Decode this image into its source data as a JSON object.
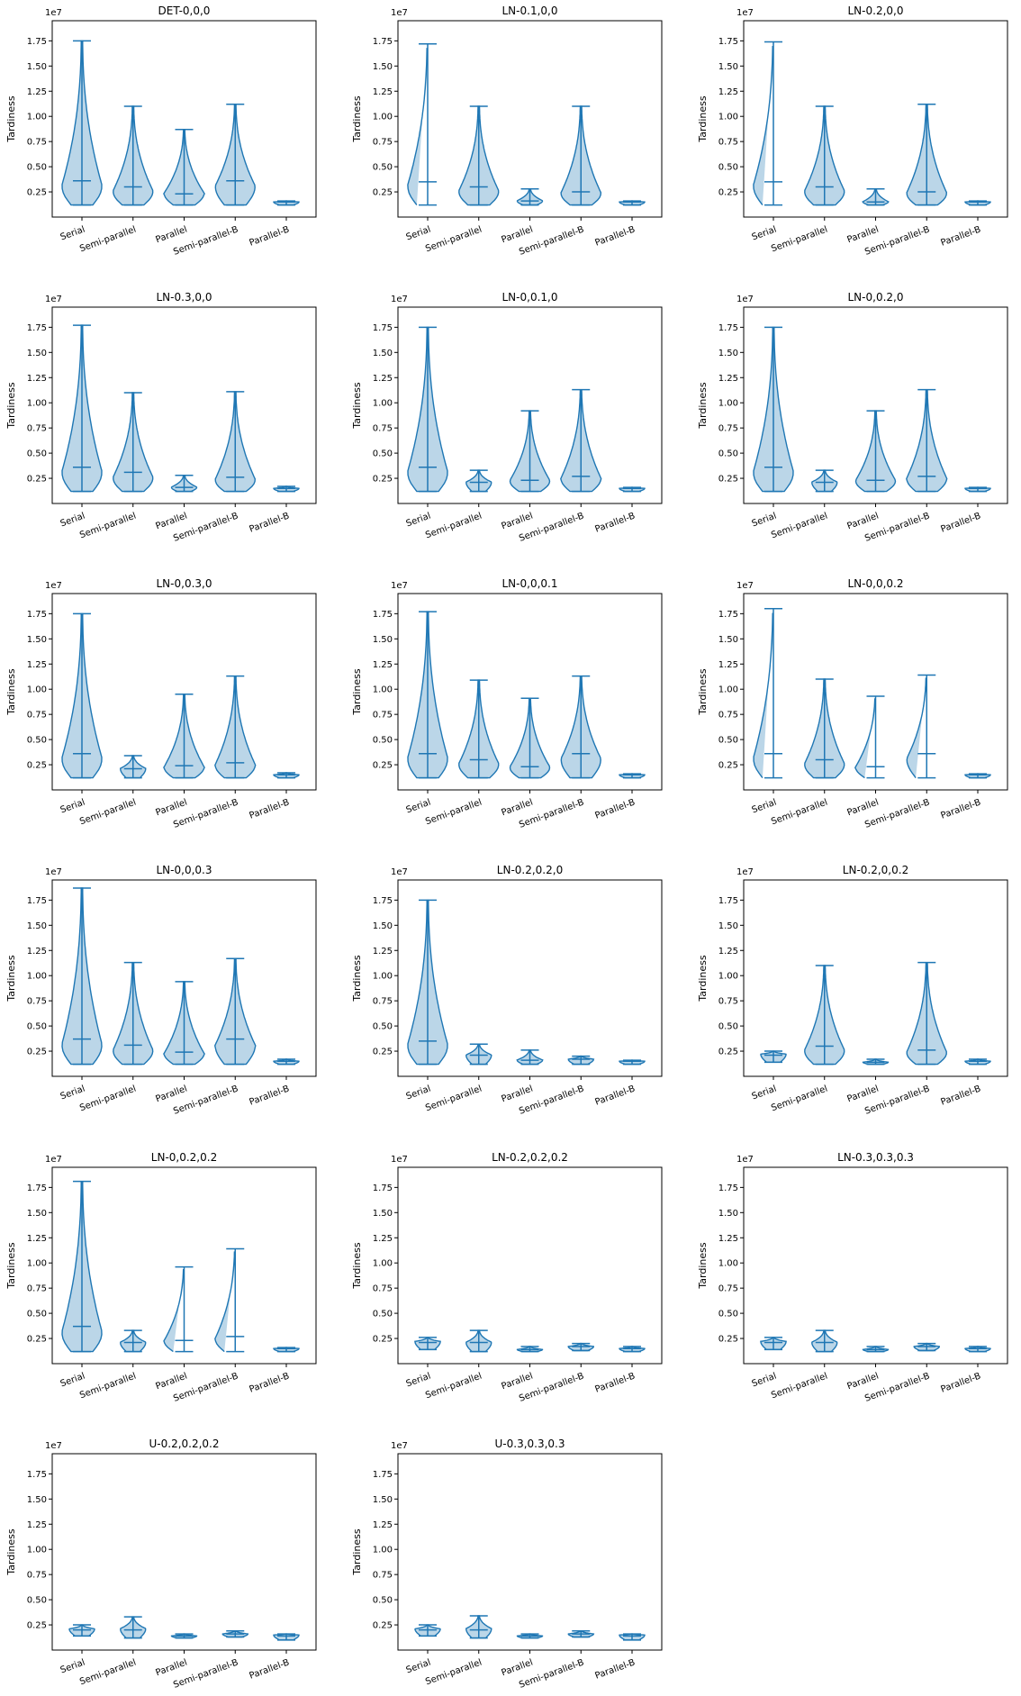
{
  "figure": {
    "ylabel": "Tardiness",
    "offset_label": "1e7",
    "yticks": [
      "0.25",
      "0.50",
      "0.75",
      "1.00",
      "1.25",
      "1.50",
      "1.75"
    ],
    "categories": [
      "Serial",
      "Semi-parallel",
      "Parallel",
      "Semi-parallel-B",
      "Parallel-B"
    ],
    "colors": {
      "fill": "#1f77b4",
      "line": "#1f77b4"
    }
  },
  "chart_data": [
    {
      "type": "violin",
      "title": "DET-0,0,0",
      "ylabel": "Tardiness",
      "ylim": [
        0,
        1.95
      ],
      "y_scale": "1e7",
      "categories": [
        "Serial",
        "Semi-parallel",
        "Parallel",
        "Semi-parallel-B",
        "Parallel-B"
      ],
      "series": [
        {
          "min": 0.12,
          "median": 0.36,
          "max": 1.75,
          "peak": 0.3
        },
        {
          "min": 0.12,
          "median": 0.3,
          "max": 1.1,
          "peak": 0.25
        },
        {
          "min": 0.12,
          "median": 0.23,
          "max": 0.87,
          "peak": 0.23
        },
        {
          "min": 0.12,
          "median": 0.36,
          "max": 1.12,
          "peak": 0.3
        },
        {
          "min": 0.12,
          "median": 0.15,
          "max": 0.16,
          "peak": 0.15
        }
      ]
    },
    {
      "type": "violin",
      "title": "LN-0.1,0,0",
      "ylabel": "Tardiness",
      "ylim": [
        0,
        1.95
      ],
      "y_scale": "1e7",
      "categories": [
        "Serial",
        "Semi-parallel",
        "Parallel",
        "Semi-parallel-B",
        "Parallel-B"
      ],
      "series": [
        {
          "min": 0.12,
          "median": 0.35,
          "max": 1.72,
          "peak": 0.3
        },
        {
          "min": 0.12,
          "median": 0.3,
          "max": 1.1,
          "peak": 0.25
        },
        {
          "min": 0.12,
          "median": 0.16,
          "max": 0.28,
          "peak": 0.16
        },
        {
          "min": 0.12,
          "median": 0.25,
          "max": 1.1,
          "peak": 0.23
        },
        {
          "min": 0.12,
          "median": 0.15,
          "max": 0.16,
          "peak": 0.15
        }
      ]
    },
    {
      "type": "violin",
      "title": "LN-0.2,0,0",
      "ylabel": "Tardiness",
      "ylim": [
        0,
        1.95
      ],
      "y_scale": "1e7",
      "categories": [
        "Serial",
        "Semi-parallel",
        "Parallel",
        "Semi-parallel-B",
        "Parallel-B"
      ],
      "series": [
        {
          "min": 0.12,
          "median": 0.35,
          "max": 1.74,
          "peak": 0.3
        },
        {
          "min": 0.12,
          "median": 0.3,
          "max": 1.1,
          "peak": 0.25
        },
        {
          "min": 0.12,
          "median": 0.15,
          "max": 0.28,
          "peak": 0.15
        },
        {
          "min": 0.12,
          "median": 0.25,
          "max": 1.12,
          "peak": 0.23
        },
        {
          "min": 0.12,
          "median": 0.15,
          "max": 0.16,
          "peak": 0.15
        }
      ]
    },
    {
      "type": "violin",
      "title": "LN-0.3,0,0",
      "ylabel": "Tardiness",
      "ylim": [
        0,
        1.95
      ],
      "y_scale": "1e7",
      "categories": [
        "Serial",
        "Semi-parallel",
        "Parallel",
        "Semi-parallel-B",
        "Parallel-B"
      ],
      "series": [
        {
          "min": 0.12,
          "median": 0.36,
          "max": 1.77,
          "peak": 0.3
        },
        {
          "min": 0.12,
          "median": 0.31,
          "max": 1.1,
          "peak": 0.25
        },
        {
          "min": 0.12,
          "median": 0.16,
          "max": 0.28,
          "peak": 0.16
        },
        {
          "min": 0.12,
          "median": 0.26,
          "max": 1.11,
          "peak": 0.23
        },
        {
          "min": 0.12,
          "median": 0.15,
          "max": 0.17,
          "peak": 0.15
        }
      ]
    },
    {
      "type": "violin",
      "title": "LN-0,0.1,0",
      "ylabel": "Tardiness",
      "ylim": [
        0,
        1.95
      ],
      "y_scale": "1e7",
      "categories": [
        "Serial",
        "Semi-parallel",
        "Parallel",
        "Semi-parallel-B",
        "Parallel-B"
      ],
      "series": [
        {
          "min": 0.12,
          "median": 0.36,
          "max": 1.75,
          "peak": 0.3
        },
        {
          "min": 0.12,
          "median": 0.21,
          "max": 0.33,
          "peak": 0.21
        },
        {
          "min": 0.12,
          "median": 0.23,
          "max": 0.92,
          "peak": 0.22
        },
        {
          "min": 0.12,
          "median": 0.27,
          "max": 1.13,
          "peak": 0.24
        },
        {
          "min": 0.12,
          "median": 0.15,
          "max": 0.16,
          "peak": 0.15
        }
      ]
    },
    {
      "type": "violin",
      "title": "LN-0,0.2,0",
      "ylabel": "Tardiness",
      "ylim": [
        0,
        1.95
      ],
      "y_scale": "1e7",
      "categories": [
        "Serial",
        "Semi-parallel",
        "Parallel",
        "Semi-parallel-B",
        "Parallel-B"
      ],
      "series": [
        {
          "min": 0.12,
          "median": 0.36,
          "max": 1.75,
          "peak": 0.3
        },
        {
          "min": 0.12,
          "median": 0.21,
          "max": 0.33,
          "peak": 0.21
        },
        {
          "min": 0.12,
          "median": 0.23,
          "max": 0.92,
          "peak": 0.22
        },
        {
          "min": 0.12,
          "median": 0.27,
          "max": 1.13,
          "peak": 0.24
        },
        {
          "min": 0.12,
          "median": 0.15,
          "max": 0.16,
          "peak": 0.15
        }
      ]
    },
    {
      "type": "violin",
      "title": "LN-0,0.3,0",
      "ylabel": "Tardiness",
      "ylim": [
        0,
        1.95
      ],
      "y_scale": "1e7",
      "categories": [
        "Serial",
        "Semi-parallel",
        "Parallel",
        "Semi-parallel-B",
        "Parallel-B"
      ],
      "series": [
        {
          "min": 0.12,
          "median": 0.36,
          "max": 1.75,
          "peak": 0.3
        },
        {
          "min": 0.12,
          "median": 0.21,
          "max": 0.34,
          "peak": 0.21
        },
        {
          "min": 0.12,
          "median": 0.24,
          "max": 0.95,
          "peak": 0.22
        },
        {
          "min": 0.12,
          "median": 0.27,
          "max": 1.13,
          "peak": 0.24
        },
        {
          "min": 0.12,
          "median": 0.15,
          "max": 0.17,
          "peak": 0.15
        }
      ]
    },
    {
      "type": "violin",
      "title": "LN-0,0,0.1",
      "ylabel": "Tardiness",
      "ylim": [
        0,
        1.95
      ],
      "y_scale": "1e7",
      "categories": [
        "Serial",
        "Semi-parallel",
        "Parallel",
        "Semi-parallel-B",
        "Parallel-B"
      ],
      "series": [
        {
          "min": 0.12,
          "median": 0.36,
          "max": 1.77,
          "peak": 0.3
        },
        {
          "min": 0.12,
          "median": 0.3,
          "max": 1.09,
          "peak": 0.25
        },
        {
          "min": 0.12,
          "median": 0.23,
          "max": 0.91,
          "peak": 0.22
        },
        {
          "min": 0.12,
          "median": 0.36,
          "max": 1.13,
          "peak": 0.3
        },
        {
          "min": 0.12,
          "median": 0.15,
          "max": 0.16,
          "peak": 0.15
        }
      ]
    },
    {
      "type": "violin",
      "title": "LN-0,0,0.2",
      "ylabel": "Tardiness",
      "ylim": [
        0,
        1.95
      ],
      "y_scale": "1e7",
      "categories": [
        "Serial",
        "Semi-parallel",
        "Parallel",
        "Semi-parallel-B",
        "Parallel-B"
      ],
      "series": [
        {
          "min": 0.12,
          "median": 0.36,
          "max": 1.8,
          "peak": 0.3
        },
        {
          "min": 0.12,
          "median": 0.3,
          "max": 1.1,
          "peak": 0.25
        },
        {
          "min": 0.12,
          "median": 0.23,
          "max": 0.93,
          "peak": 0.22
        },
        {
          "min": 0.12,
          "median": 0.36,
          "max": 1.14,
          "peak": 0.3
        },
        {
          "min": 0.12,
          "median": 0.15,
          "max": 0.16,
          "peak": 0.15
        }
      ]
    },
    {
      "type": "violin",
      "title": "LN-0,0,0.3",
      "ylabel": "Tardiness",
      "ylim": [
        0,
        1.95
      ],
      "y_scale": "1e7",
      "categories": [
        "Serial",
        "Semi-parallel",
        "Parallel",
        "Semi-parallel-B",
        "Parallel-B"
      ],
      "series": [
        {
          "min": 0.12,
          "median": 0.37,
          "max": 1.87,
          "peak": 0.3
        },
        {
          "min": 0.12,
          "median": 0.31,
          "max": 1.13,
          "peak": 0.25
        },
        {
          "min": 0.12,
          "median": 0.24,
          "max": 0.94,
          "peak": 0.22
        },
        {
          "min": 0.12,
          "median": 0.37,
          "max": 1.17,
          "peak": 0.3
        },
        {
          "min": 0.12,
          "median": 0.15,
          "max": 0.17,
          "peak": 0.15
        }
      ]
    },
    {
      "type": "violin",
      "title": "LN-0.2,0.2,0",
      "ylabel": "Tardiness",
      "ylim": [
        0,
        1.95
      ],
      "y_scale": "1e7",
      "categories": [
        "Serial",
        "Semi-parallel",
        "Parallel",
        "Semi-parallel-B",
        "Parallel-B"
      ],
      "series": [
        {
          "min": 0.12,
          "median": 0.35,
          "max": 1.75,
          "peak": 0.3
        },
        {
          "min": 0.12,
          "median": 0.21,
          "max": 0.32,
          "peak": 0.21
        },
        {
          "min": 0.12,
          "median": 0.16,
          "max": 0.26,
          "peak": 0.16
        },
        {
          "min": 0.12,
          "median": 0.17,
          "max": 0.2,
          "peak": 0.17
        },
        {
          "min": 0.12,
          "median": 0.15,
          "max": 0.16,
          "peak": 0.15
        }
      ]
    },
    {
      "type": "violin",
      "title": "LN-0.2,0,0.2",
      "ylabel": "Tardiness",
      "ylim": [
        0,
        1.95
      ],
      "y_scale": "1e7",
      "categories": [
        "Serial",
        "Semi-parallel",
        "Parallel",
        "Semi-parallel-B",
        "Parallel-B"
      ],
      "series": [
        {
          "min": 0.14,
          "median": 0.21,
          "max": 0.25,
          "peak": 0.22
        },
        {
          "min": 0.12,
          "median": 0.3,
          "max": 1.1,
          "peak": 0.25
        },
        {
          "min": 0.12,
          "median": 0.14,
          "max": 0.17,
          "peak": 0.14
        },
        {
          "min": 0.12,
          "median": 0.26,
          "max": 1.13,
          "peak": 0.23
        },
        {
          "min": 0.12,
          "median": 0.15,
          "max": 0.17,
          "peak": 0.15
        }
      ]
    },
    {
      "type": "violin",
      "title": "LN-0,0.2,0.2",
      "ylabel": "Tardiness",
      "ylim": [
        0,
        1.95
      ],
      "y_scale": "1e7",
      "categories": [
        "Serial",
        "Semi-parallel",
        "Parallel",
        "Semi-parallel-B",
        "Parallel-B"
      ],
      "series": [
        {
          "min": 0.12,
          "median": 0.37,
          "max": 1.81,
          "peak": 0.3
        },
        {
          "min": 0.12,
          "median": 0.21,
          "max": 0.33,
          "peak": 0.21
        },
        {
          "min": 0.12,
          "median": 0.23,
          "max": 0.96,
          "peak": 0.22
        },
        {
          "min": 0.12,
          "median": 0.27,
          "max": 1.14,
          "peak": 0.24
        },
        {
          "min": 0.12,
          "median": 0.15,
          "max": 0.16,
          "peak": 0.15
        }
      ]
    },
    {
      "type": "violin",
      "title": "LN-0.2,0.2,0.2",
      "ylabel": "Tardiness",
      "ylim": [
        0,
        1.95
      ],
      "y_scale": "1e7",
      "categories": [
        "Serial",
        "Semi-parallel",
        "Parallel",
        "Semi-parallel-B",
        "Parallel-B"
      ],
      "series": [
        {
          "min": 0.14,
          "median": 0.21,
          "max": 0.26,
          "peak": 0.22
        },
        {
          "min": 0.12,
          "median": 0.21,
          "max": 0.33,
          "peak": 0.21
        },
        {
          "min": 0.12,
          "median": 0.14,
          "max": 0.17,
          "peak": 0.14
        },
        {
          "min": 0.13,
          "median": 0.17,
          "max": 0.2,
          "peak": 0.17
        },
        {
          "min": 0.12,
          "median": 0.15,
          "max": 0.17,
          "peak": 0.15
        }
      ]
    },
    {
      "type": "violin",
      "title": "LN-0.3,0.3,0.3",
      "ylabel": "Tardiness",
      "ylim": [
        0,
        1.95
      ],
      "y_scale": "1e7",
      "categories": [
        "Serial",
        "Semi-parallel",
        "Parallel",
        "Semi-parallel-B",
        "Parallel-B"
      ],
      "series": [
        {
          "min": 0.14,
          "median": 0.21,
          "max": 0.26,
          "peak": 0.22
        },
        {
          "min": 0.12,
          "median": 0.21,
          "max": 0.33,
          "peak": 0.21
        },
        {
          "min": 0.12,
          "median": 0.14,
          "max": 0.17,
          "peak": 0.14
        },
        {
          "min": 0.13,
          "median": 0.17,
          "max": 0.2,
          "peak": 0.17
        },
        {
          "min": 0.12,
          "median": 0.15,
          "max": 0.17,
          "peak": 0.15
        }
      ]
    },
    {
      "type": "violin",
      "title": "U-0.2,0.2,0.2",
      "ylabel": "Tardiness",
      "ylim": [
        0,
        1.95
      ],
      "y_scale": "1e7",
      "categories": [
        "Serial",
        "Semi-parallel",
        "Parallel",
        "Semi-parallel-B",
        "Parallel-B"
      ],
      "series": [
        {
          "min": 0.14,
          "median": 0.2,
          "max": 0.25,
          "peak": 0.21
        },
        {
          "min": 0.12,
          "median": 0.2,
          "max": 0.33,
          "peak": 0.21
        },
        {
          "min": 0.12,
          "median": 0.14,
          "max": 0.16,
          "peak": 0.14
        },
        {
          "min": 0.13,
          "median": 0.16,
          "max": 0.19,
          "peak": 0.16
        },
        {
          "min": 0.1,
          "median": 0.14,
          "max": 0.16,
          "peak": 0.15
        }
      ]
    },
    {
      "type": "violin",
      "title": "U-0.3,0.3,0.3",
      "ylabel": "Tardiness",
      "ylim": [
        0,
        1.95
      ],
      "y_scale": "1e7",
      "categories": [
        "Serial",
        "Semi-parallel",
        "Parallel",
        "Semi-parallel-B",
        "Parallel-B"
      ],
      "series": [
        {
          "min": 0.14,
          "median": 0.2,
          "max": 0.25,
          "peak": 0.21
        },
        {
          "min": 0.12,
          "median": 0.2,
          "max": 0.34,
          "peak": 0.21
        },
        {
          "min": 0.12,
          "median": 0.14,
          "max": 0.16,
          "peak": 0.14
        },
        {
          "min": 0.13,
          "median": 0.16,
          "max": 0.19,
          "peak": 0.16
        },
        {
          "min": 0.1,
          "median": 0.14,
          "max": 0.16,
          "peak": 0.15
        }
      ]
    }
  ]
}
